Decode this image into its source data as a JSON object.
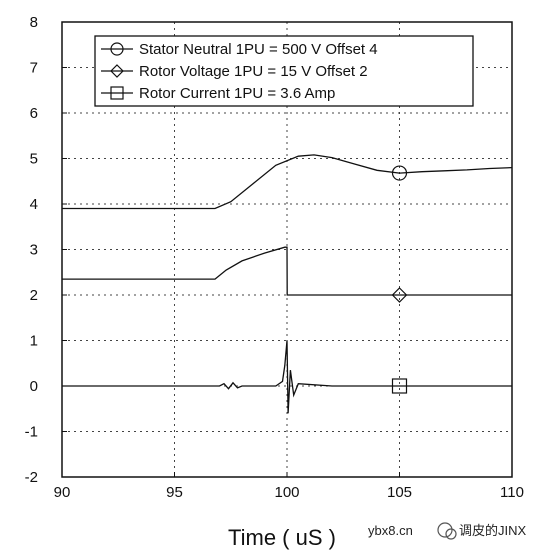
{
  "chart_data": {
    "type": "line",
    "xlabel": "Time ( uS )",
    "ylabel": "",
    "xlim": [
      90,
      110
    ],
    "ylim": [
      -2,
      8
    ],
    "xticks": [
      90,
      95,
      100,
      105,
      110
    ],
    "yticks": [
      -2,
      -1,
      0,
      1,
      2,
      3,
      4,
      5,
      6,
      7,
      8
    ],
    "grid": true,
    "legend_position": "top-right",
    "series": [
      {
        "name": "Stator Neutral 1PU = 500 V Offset 4",
        "marker": "circle",
        "marker_x": 105,
        "x": [
          90,
          96.8,
          97.5,
          98.5,
          99.5,
          100.5,
          101.2,
          102,
          103,
          104,
          105,
          106,
          107,
          108,
          109,
          110
        ],
        "y": [
          3.9,
          3.9,
          4.05,
          4.45,
          4.85,
          5.05,
          5.08,
          5.02,
          4.88,
          4.74,
          4.68,
          4.71,
          4.73,
          4.75,
          4.78,
          4.8
        ]
      },
      {
        "name": "Rotor Voltage 1PU = 15 V Offset 2",
        "marker": "diamond",
        "marker_x": 105,
        "x": [
          90,
          96.8,
          97.3,
          98,
          99,
          99.9,
          100,
          100.01,
          102,
          104,
          106,
          108,
          110
        ],
        "y": [
          2.35,
          2.35,
          2.55,
          2.75,
          2.92,
          3.05,
          3.05,
          2.0,
          2.0,
          2.0,
          2.0,
          2.0,
          2.0
        ]
      },
      {
        "name": "Rotor Current 1PU = 3.6 Amp",
        "marker": "square",
        "marker_x": 105,
        "x": [
          90,
          97,
          97.2,
          97.4,
          97.6,
          97.8,
          98,
          99.5,
          99.8,
          99.9,
          100,
          100.05,
          100.15,
          100.3,
          100.5,
          102,
          105,
          110
        ],
        "y": [
          0,
          0,
          0.05,
          -0.06,
          0.07,
          -0.04,
          0,
          0,
          0.1,
          0.45,
          1.0,
          -0.6,
          0.35,
          -0.2,
          0.05,
          0,
          0,
          0
        ]
      }
    ]
  },
  "watermark": {
    "site": "ybx8.cn",
    "account": "调皮的JINX"
  }
}
